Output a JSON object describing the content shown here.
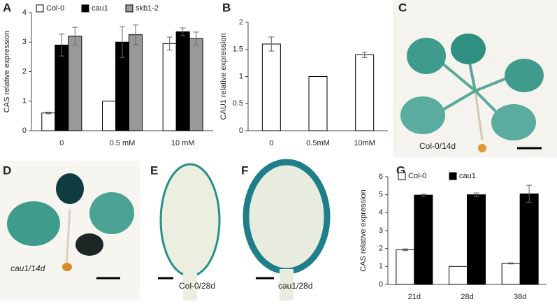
{
  "panel_labels": [
    "A",
    "B",
    "C",
    "D",
    "E",
    "F",
    "G"
  ],
  "photo_captions": [
    "Col-0/14d",
    "cau1/14d",
    "Col-0/28d",
    "cau1/28d"
  ],
  "chart_data": [
    {
      "type": "bar",
      "ylabel": "CAS relative expression",
      "categories": [
        "0",
        "0.5 mM",
        "10 mM"
      ],
      "series": [
        {
          "name": "Col-0",
          "color": "#ffffff",
          "values": [
            0.6,
            1.0,
            2.95
          ],
          "errors": [
            0.03,
            0,
            0.22
          ]
        },
        {
          "name": "cau1",
          "color": "#000000",
          "values": [
            2.9,
            3.0,
            3.35
          ],
          "errors": [
            0.37,
            0.52,
            0.13
          ]
        },
        {
          "name": "skb1-2",
          "color": "#999999",
          "values": [
            3.2,
            3.25,
            3.12
          ],
          "errors": [
            0.3,
            0.33,
            0.22
          ]
        }
      ],
      "ylim": [
        0,
        4
      ],
      "yticks": [
        0,
        1,
        2,
        3,
        4
      ]
    },
    {
      "type": "bar",
      "ylabel": "CAU1 relative expression",
      "categories": [
        "0",
        "0.5mM",
        "10mM"
      ],
      "values": [
        1.6,
        1.0,
        1.4
      ],
      "errors": [
        0.13,
        0,
        0.05
      ],
      "color": "#ffffff",
      "ylim": [
        0,
        2
      ],
      "yticks": [
        0,
        0.5,
        1,
        1.5,
        2
      ]
    },
    {
      "type": "bar",
      "ylabel": "CAS relative expression",
      "categories": [
        "21d",
        "28d",
        "38d"
      ],
      "series": [
        {
          "name": "Col-0",
          "color": "#ffffff",
          "values": [
            1.93,
            1.0,
            1.17
          ],
          "errors": [
            0.05,
            0,
            0.03
          ]
        },
        {
          "name": "cau1",
          "color": "#000000",
          "values": [
            4.98,
            5.0,
            5.05
          ],
          "errors": [
            0.05,
            0.1,
            0.48
          ]
        }
      ],
      "ylim": [
        0,
        6
      ],
      "yticks": [
        0,
        1,
        2,
        3,
        4,
        5,
        6
      ]
    }
  ]
}
